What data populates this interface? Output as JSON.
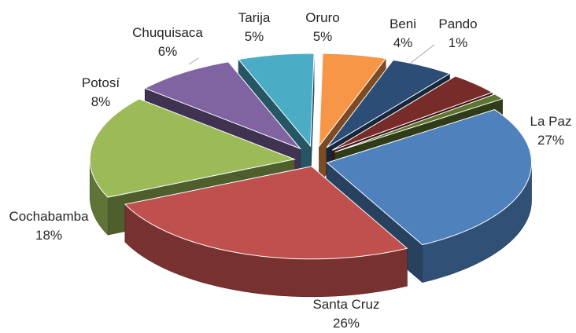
{
  "chart_data": {
    "type": "pie",
    "style": "3d-exploded",
    "title": "",
    "slices": [
      {
        "label": "La Paz",
        "value_label": "27%",
        "value": 27,
        "color": "#4f81bd"
      },
      {
        "label": "Santa Cruz",
        "value_label": "26%",
        "value": 26,
        "color": "#c0504d"
      },
      {
        "label": "Cochabamba",
        "value_label": "18%",
        "value": 18,
        "color": "#9bbb59"
      },
      {
        "label": "Potosí",
        "value_label": "8%",
        "value": 8,
        "color": "#8064a2"
      },
      {
        "label": "Chuquisaca",
        "value_label": "6%",
        "value": 6,
        "color": "#4bacc6"
      },
      {
        "label": "Tarija",
        "value_label": "5%",
        "value": 5,
        "color": "#f79646"
      },
      {
        "label": "Oruro",
        "value_label": "5%",
        "value": 5,
        "color": "#2c4d75"
      },
      {
        "label": "Beni",
        "value_label": "4%",
        "value": 4,
        "color": "#772c2a"
      },
      {
        "label": "Pando",
        "value_label": "1%",
        "value": 1,
        "color": "#5f7530"
      }
    ]
  }
}
